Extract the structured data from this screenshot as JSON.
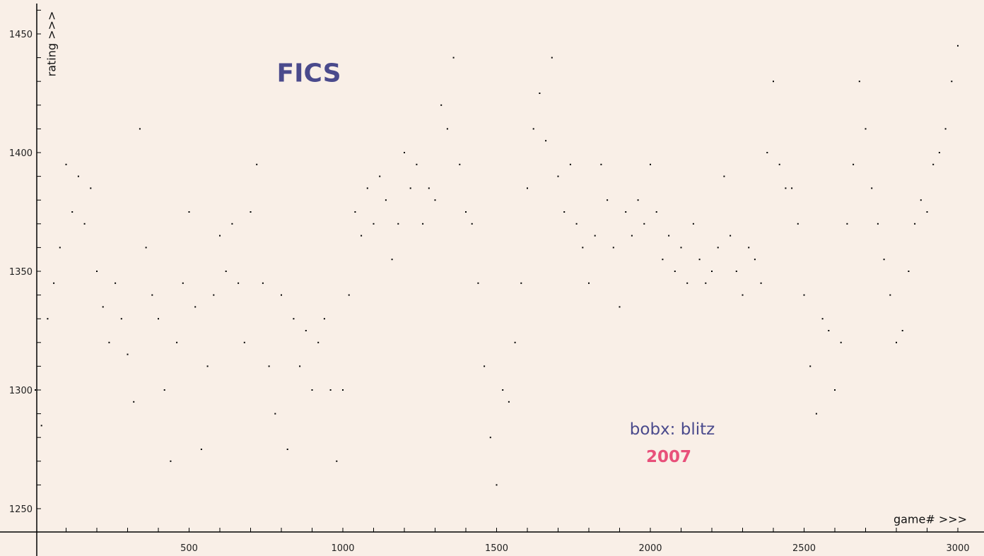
{
  "chart_data": {
    "type": "scatter",
    "title": "FICS",
    "annotations": [
      "bobx: blitz",
      "2007"
    ],
    "xlabel": "game# >>>",
    "ylabel": "rating >>>",
    "xlim": [
      0,
      3080
    ],
    "ylim": [
      1240,
      1460
    ],
    "xticks": [
      500,
      1000,
      1500,
      2000,
      2500,
      3000
    ],
    "yticks": [
      1250,
      1300,
      1350,
      1400,
      1450
    ],
    "grid": false,
    "colors": {
      "points": "#000000",
      "title": "#4a4a8c",
      "player": "#4a4a8c",
      "year": "#e8507a",
      "background": "#f9efe7"
    },
    "x": [
      0,
      20,
      40,
      60,
      80,
      100,
      120,
      140,
      160,
      180,
      200,
      220,
      240,
      260,
      280,
      300,
      320,
      340,
      360,
      380,
      400,
      420,
      440,
      460,
      480,
      500,
      520,
      540,
      560,
      580,
      600,
      620,
      640,
      660,
      680,
      700,
      720,
      740,
      760,
      780,
      800,
      820,
      840,
      860,
      880,
      900,
      920,
      940,
      960,
      980,
      1000,
      1020,
      1040,
      1060,
      1080,
      1100,
      1120,
      1140,
      1160,
      1180,
      1200,
      1220,
      1240,
      1260,
      1280,
      1300,
      1320,
      1340,
      1360,
      1380,
      1400,
      1420,
      1440,
      1460,
      1480,
      1500,
      1520,
      1540,
      1560,
      1580,
      1600,
      1620,
      1640,
      1660,
      1680,
      1700,
      1720,
      1740,
      1760,
      1780,
      1800,
      1820,
      1840,
      1860,
      1880,
      1900,
      1920,
      1940,
      1960,
      1980,
      2000,
      2020,
      2040,
      2060,
      2080,
      2100,
      2120,
      2140,
      2160,
      2180,
      2200,
      2220,
      2240,
      2260,
      2280,
      2300,
      2320,
      2340,
      2360,
      2380,
      2400,
      2420,
      2440,
      2460,
      2480,
      2500,
      2520,
      2540,
      2560,
      2580,
      2600,
      2620,
      2640,
      2660,
      2680,
      2700,
      2720,
      2740,
      2760,
      2780,
      2800,
      2820,
      2840,
      2860,
      2880,
      2900,
      2920,
      2940,
      2960,
      2980,
      3000
    ],
    "y": [
      1300,
      1285,
      1330,
      1345,
      1360,
      1395,
      1375,
      1390,
      1370,
      1385,
      1350,
      1335,
      1320,
      1345,
      1330,
      1315,
      1295,
      1410,
      1360,
      1340,
      1330,
      1300,
      1270,
      1320,
      1345,
      1375,
      1335,
      1275,
      1310,
      1340,
      1365,
      1350,
      1370,
      1345,
      1320,
      1375,
      1395,
      1345,
      1310,
      1290,
      1340,
      1275,
      1330,
      1310,
      1325,
      1300,
      1320,
      1330,
      1300,
      1270,
      1300,
      1340,
      1375,
      1365,
      1385,
      1370,
      1390,
      1380,
      1355,
      1370,
      1400,
      1385,
      1395,
      1370,
      1385,
      1380,
      1420,
      1410,
      1440,
      1395,
      1375,
      1370,
      1345,
      1310,
      1280,
      1260,
      1300,
      1295,
      1320,
      1345,
      1385,
      1410,
      1425,
      1405,
      1440,
      1390,
      1375,
      1395,
      1370,
      1360,
      1345,
      1365,
      1395,
      1380,
      1360,
      1335,
      1375,
      1365,
      1380,
      1370,
      1395,
      1375,
      1355,
      1365,
      1350,
      1360,
      1345,
      1370,
      1355,
      1345,
      1350,
      1360,
      1390,
      1365,
      1350,
      1340,
      1360,
      1355,
      1345,
      1400,
      1430,
      1395,
      1385,
      1385,
      1370,
      1340,
      1310,
      1290,
      1330,
      1325,
      1300,
      1320,
      1370,
      1395,
      1430,
      1410,
      1385,
      1370,
      1355,
      1340,
      1320,
      1325,
      1350,
      1370,
      1380,
      1375,
      1395,
      1400,
      1410,
      1430,
      1445
    ]
  }
}
